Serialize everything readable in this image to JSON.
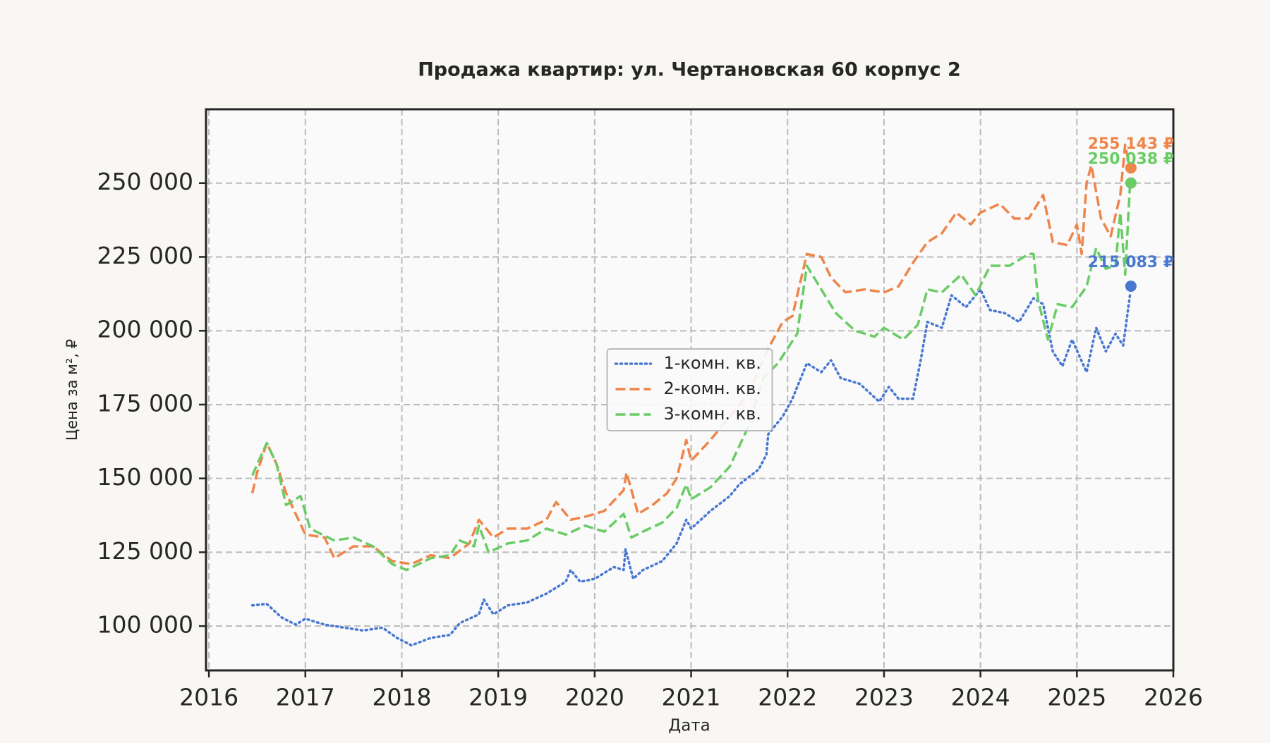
{
  "chart_data": {
    "type": "line",
    "title": "Продажа квартир: ул. Чертановская 60 корпус 2",
    "xlabel": "Дата",
    "ylabel": "Цена за м², ₽",
    "xlim": [
      2015.97,
      2026.0
    ],
    "xticks": [
      2016,
      2017,
      2018,
      2019,
      2020,
      2021,
      2022,
      2023,
      2024,
      2025,
      2026
    ],
    "ylim": [
      85000,
      275000
    ],
    "yticks": [
      {
        "value": 100000,
        "label": "100 000"
      },
      {
        "value": 125000,
        "label": "125 000"
      },
      {
        "value": 150000,
        "label": "150 000"
      },
      {
        "value": 175000,
        "label": "175 000"
      },
      {
        "value": 200000,
        "label": "200 000"
      },
      {
        "value": 225000,
        "label": "225 000"
      },
      {
        "value": 250000,
        "label": "250 000"
      }
    ],
    "grid": true,
    "legend": "center",
    "series": [
      {
        "name": "1-комн. кв.",
        "color": "#4878d0",
        "linestyle": "dotted",
        "x": [
          2016.45,
          2016.6,
          2016.75,
          2016.9,
          2017.0,
          2017.2,
          2017.4,
          2017.6,
          2017.8,
          2017.95,
          2018.1,
          2018.3,
          2018.5,
          2018.6,
          2018.8,
          2018.85,
          2018.95,
          2019.1,
          2019.3,
          2019.5,
          2019.7,
          2019.75,
          2019.85,
          2020.0,
          2020.2,
          2020.3,
          2020.32,
          2020.4,
          2020.5,
          2020.7,
          2020.85,
          2020.95,
          2021.0,
          2021.2,
          2021.4,
          2021.5,
          2021.7,
          2021.78,
          2021.8,
          2021.95,
          2022.05,
          2022.2,
          2022.35,
          2022.45,
          2022.55,
          2022.75,
          2022.95,
          2023.05,
          2023.15,
          2023.3,
          2023.38,
          2023.45,
          2023.6,
          2023.7,
          2023.85,
          2024.0,
          2024.1,
          2024.25,
          2024.4,
          2024.55,
          2024.65,
          2024.75,
          2024.85,
          2024.95,
          2025.1,
          2025.2,
          2025.3,
          2025.4,
          2025.48,
          2025.55
        ],
        "values": [
          107000,
          107500,
          103000,
          100500,
          102500,
          100500,
          99500,
          98500,
          99500,
          96000,
          93500,
          96000,
          97000,
          101000,
          104000,
          109000,
          104000,
          107000,
          108000,
          111000,
          115000,
          119000,
          115000,
          116000,
          120000,
          119000,
          126000,
          116000,
          119000,
          122000,
          128000,
          136000,
          133000,
          139000,
          144000,
          148000,
          153000,
          158000,
          165000,
          171000,
          177000,
          189000,
          186000,
          190000,
          184000,
          182000,
          176000,
          181000,
          177000,
          177000,
          190000,
          203000,
          201000,
          212000,
          208000,
          214000,
          207000,
          206000,
          203000,
          211000,
          209000,
          193000,
          188000,
          197000,
          186000,
          201000,
          193000,
          199000,
          195000,
          212000
        ]
      },
      {
        "name": "2-комн. кв.",
        "color": "#ee854a",
        "linestyle": "dashed",
        "x": [
          2016.45,
          2016.5,
          2016.6,
          2016.7,
          2016.8,
          2016.9,
          2017.0,
          2017.2,
          2017.3,
          2017.5,
          2017.7,
          2017.9,
          2018.1,
          2018.3,
          2018.5,
          2018.7,
          2018.8,
          2018.95,
          2019.1,
          2019.3,
          2019.5,
          2019.6,
          2019.75,
          2019.9,
          2020.1,
          2020.3,
          2020.33,
          2020.45,
          2020.6,
          2020.75,
          2020.85,
          2020.95,
          2021.0,
          2021.2,
          2021.4,
          2021.6,
          2021.8,
          2021.95,
          2022.05,
          2022.2,
          2022.35,
          2022.45,
          2022.6,
          2022.8,
          2023.0,
          2023.15,
          2023.3,
          2023.45,
          2023.6,
          2023.75,
          2023.9,
          2024.0,
          2024.2,
          2024.35,
          2024.5,
          2024.65,
          2024.75,
          2024.9,
          2025.0,
          2025.05,
          2025.1,
          2025.15,
          2025.25,
          2025.35,
          2025.45,
          2025.5,
          2025.55
        ],
        "values": [
          145000,
          152000,
          162000,
          155000,
          145000,
          138000,
          131000,
          130000,
          123000,
          127000,
          127000,
          122000,
          121000,
          124000,
          123000,
          128000,
          136000,
          130000,
          133000,
          133000,
          136000,
          142000,
          136000,
          137000,
          139000,
          146000,
          152000,
          138000,
          141000,
          145000,
          150000,
          163000,
          156000,
          163000,
          171000,
          179000,
          194000,
          203000,
          205000,
          226000,
          225000,
          218000,
          213000,
          214000,
          213000,
          215000,
          223000,
          230000,
          233000,
          240000,
          236000,
          240000,
          243000,
          238000,
          238000,
          246000,
          230000,
          229000,
          236000,
          226000,
          250000,
          256000,
          238000,
          232000,
          246000,
          263000,
          255000
        ]
      },
      {
        "name": "3-комн. кв.",
        "color": "#6acc64",
        "linestyle": "dashed",
        "x": [
          2016.45,
          2016.6,
          2016.7,
          2016.8,
          2016.95,
          2017.05,
          2017.3,
          2017.5,
          2017.7,
          2017.9,
          2018.05,
          2018.3,
          2018.5,
          2018.6,
          2018.75,
          2018.8,
          2018.9,
          2019.1,
          2019.3,
          2019.5,
          2019.7,
          2019.9,
          2020.1,
          2020.3,
          2020.38,
          2020.5,
          2020.7,
          2020.85,
          2020.95,
          2021.0,
          2021.2,
          2021.4,
          2021.6,
          2021.75,
          2021.9,
          2022.1,
          2022.2,
          2022.35,
          2022.5,
          2022.7,
          2022.9,
          2023.0,
          2023.2,
          2023.35,
          2023.45,
          2023.6,
          2023.8,
          2023.95,
          2024.1,
          2024.3,
          2024.5,
          2024.55,
          2024.6,
          2024.7,
          2024.8,
          2024.95,
          2025.1,
          2025.2,
          2025.3,
          2025.4,
          2025.45,
          2025.5,
          2025.55
        ],
        "values": [
          151000,
          162000,
          155000,
          141000,
          144000,
          133000,
          129000,
          130000,
          127000,
          121000,
          119000,
          123000,
          124000,
          129000,
          127000,
          134000,
          125000,
          128000,
          129000,
          133000,
          131000,
          134000,
          132000,
          138000,
          130000,
          132000,
          135000,
          140000,
          148000,
          143000,
          147000,
          154000,
          168000,
          184000,
          189000,
          199000,
          222000,
          214000,
          206000,
          200000,
          198000,
          201000,
          197000,
          202000,
          214000,
          213000,
          219000,
          212000,
          222000,
          222000,
          226000,
          226000,
          210000,
          197000,
          209000,
          208000,
          215000,
          228000,
          221000,
          222000,
          240000,
          219000,
          249000
        ]
      }
    ],
    "annotations": [
      {
        "x": 2025.56,
        "value": 255143,
        "label": "255 143 ₽",
        "color": "#ee854a"
      },
      {
        "x": 2025.56,
        "value": 250038,
        "label": "250 038 ₽",
        "color": "#6acc64"
      },
      {
        "x": 2025.56,
        "value": 215083,
        "label": "215 083 ₽",
        "color": "#4878d0"
      }
    ]
  }
}
